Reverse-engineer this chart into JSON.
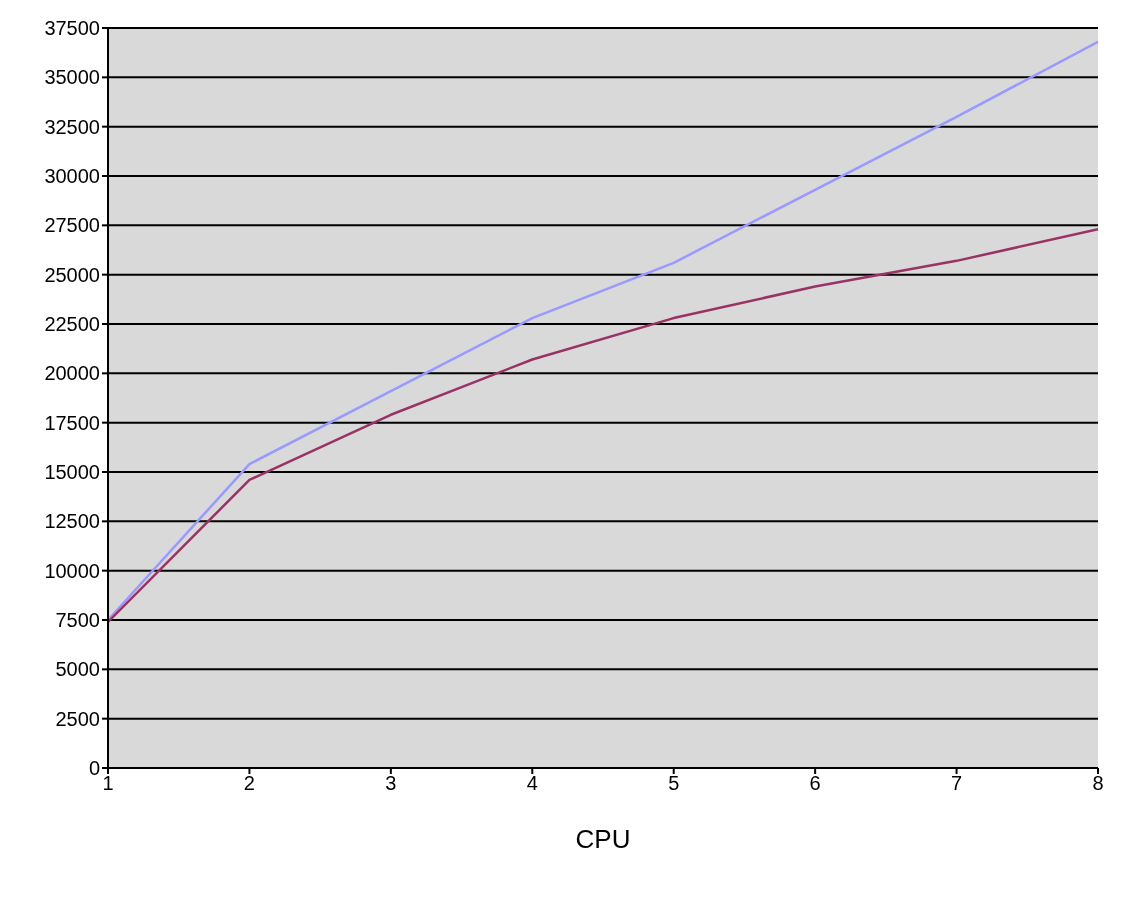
{
  "chart_data": {
    "type": "line",
    "xlabel": "CPU",
    "x": [
      1,
      2,
      3,
      4,
      5,
      6,
      7,
      8
    ],
    "series": [
      {
        "color": "#9999ff",
        "values": [
          7500,
          15400,
          19100,
          22800,
          25600,
          29300,
          33000,
          36800
        ]
      },
      {
        "color": "#993366",
        "values": [
          7400,
          14600,
          17900,
          20700,
          22800,
          24400,
          25700,
          27300
        ]
      }
    ],
    "xlim": [
      1,
      8
    ],
    "xticks": [
      1,
      2,
      3,
      4,
      5,
      6,
      7,
      8
    ],
    "ylim": [
      0,
      37500
    ],
    "yticks": [
      0,
      2500,
      5000,
      7500,
      10000,
      12500,
      15000,
      17500,
      20000,
      22500,
      25000,
      27500,
      30000,
      32500,
      35000,
      37500
    ],
    "grid": "y",
    "marker": "none",
    "line_style": "solid",
    "legend": false
  }
}
